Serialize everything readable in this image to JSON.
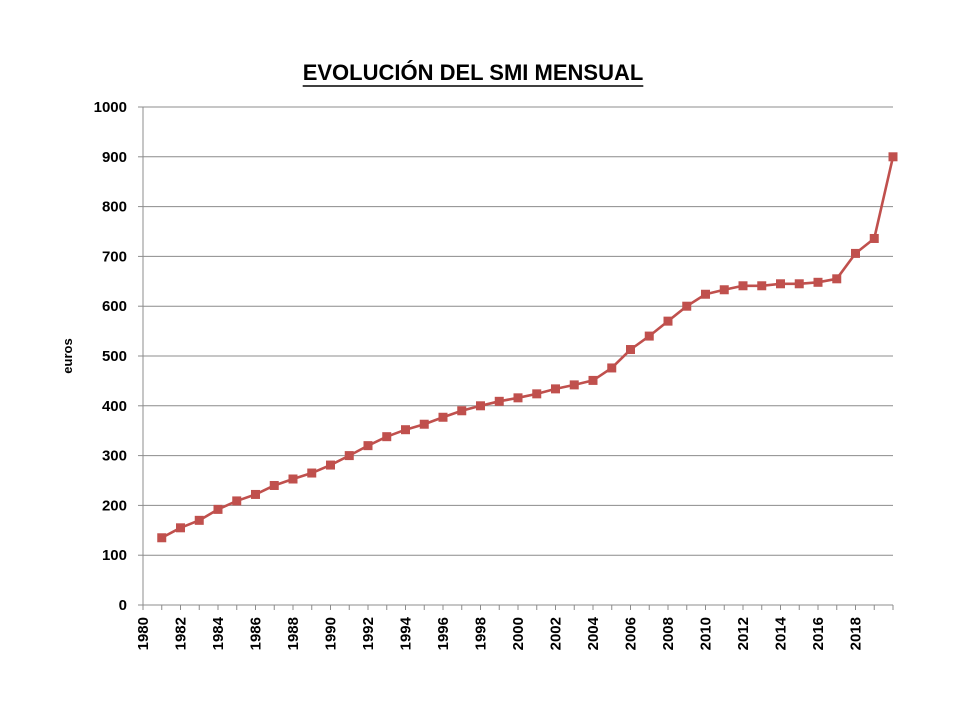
{
  "chart_data": {
    "type": "line",
    "title": "EVOLUCIÓN DEL SMI MENSUAL",
    "xlabel": "",
    "ylabel": "euros",
    "xlim": [
      1980,
      2020
    ],
    "ylim": [
      0,
      1000
    ],
    "x_ticks": [
      1980,
      1982,
      1984,
      1986,
      1988,
      1990,
      1992,
      1994,
      1996,
      1998,
      2000,
      2002,
      2004,
      2006,
      2008,
      2010,
      2012,
      2014,
      2016,
      2018
    ],
    "y_ticks": [
      0,
      100,
      200,
      300,
      400,
      500,
      600,
      700,
      800,
      900,
      1000
    ],
    "grid": true,
    "legend": "none",
    "series": [
      {
        "color": "#C0504D",
        "marker": "square",
        "x": [
          1981,
          1982,
          1983,
          1984,
          1985,
          1986,
          1987,
          1988,
          1989,
          1990,
          1991,
          1992,
          1993,
          1994,
          1995,
          1996,
          1997,
          1998,
          1999,
          2000,
          2001,
          2002,
          2003,
          2004,
          2005,
          2006,
          2007,
          2008,
          2009,
          2010,
          2011,
          2012,
          2013,
          2014,
          2015,
          2016,
          2017,
          2018,
          2019,
          2020
        ],
        "values": [
          135,
          155,
          170,
          192,
          209,
          222,
          240,
          253,
          265,
          281,
          300,
          320,
          338,
          352,
          363,
          377,
          390,
          400,
          409,
          416,
          424,
          434,
          442,
          451,
          476,
          513,
          540,
          570,
          600,
          624,
          633,
          641,
          641,
          645,
          645,
          648,
          655,
          706,
          736,
          900
        ]
      }
    ]
  }
}
